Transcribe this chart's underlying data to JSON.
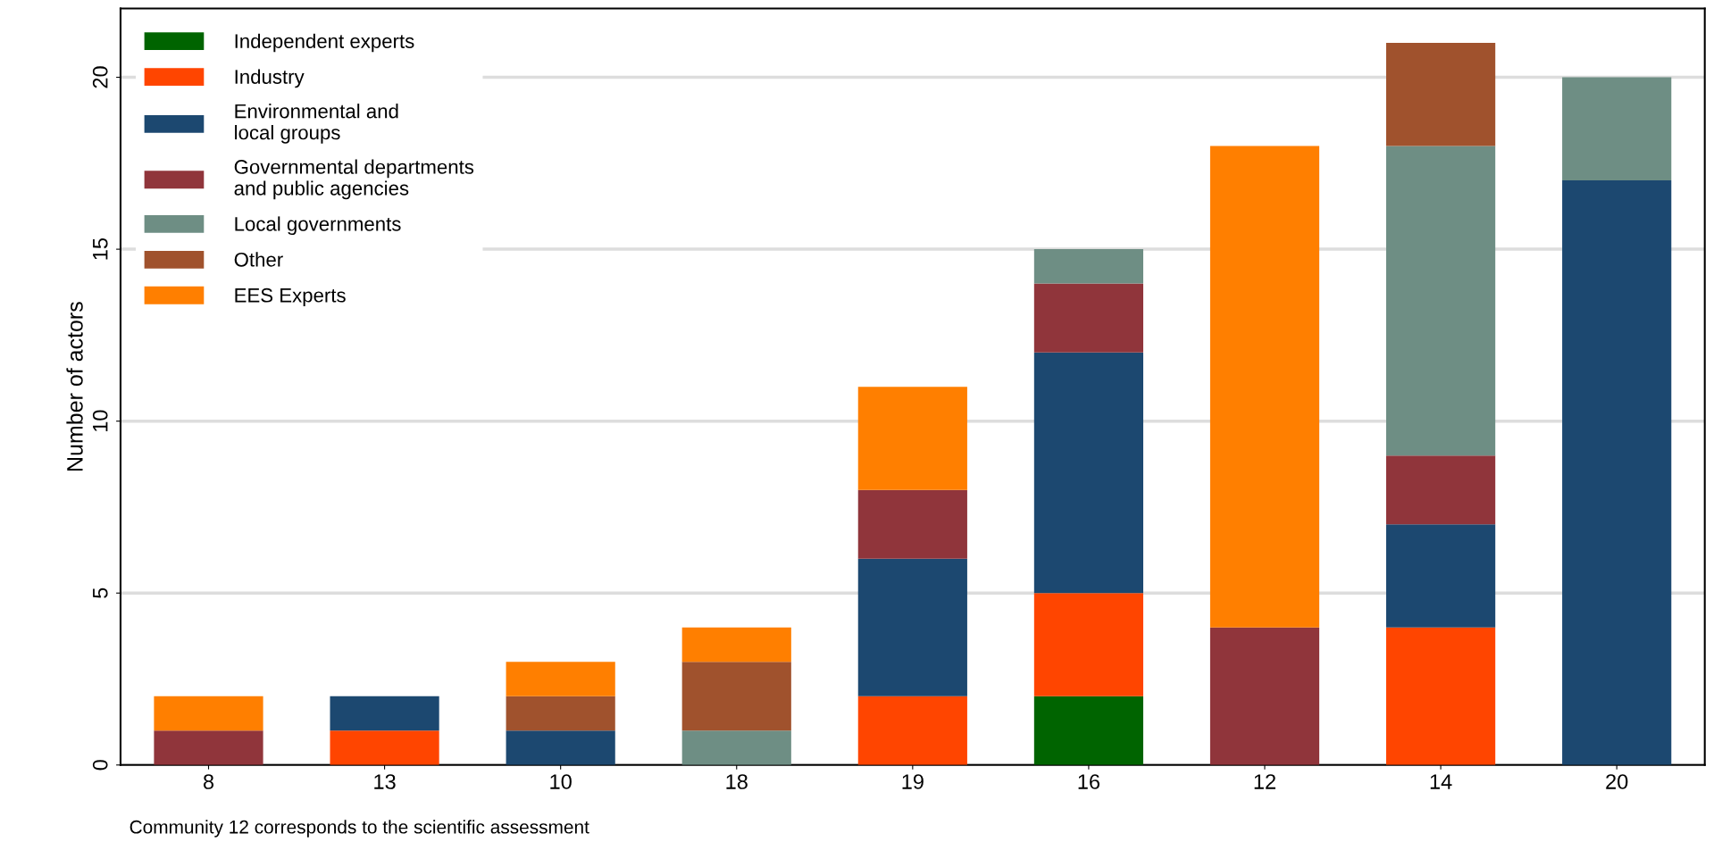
{
  "chart_data": {
    "type": "bar",
    "stacked": true,
    "ylabel": "Number of actors",
    "categories": [
      "8",
      "13",
      "10",
      "18",
      "19",
      "16",
      "12",
      "14",
      "20"
    ],
    "series": [
      {
        "name": "Independent experts",
        "color": "#006400",
        "values": [
          0,
          0,
          0,
          0,
          0,
          2,
          0,
          0,
          0
        ]
      },
      {
        "name": "Industry",
        "color": "#ff4500",
        "values": [
          0,
          1,
          0,
          0,
          2,
          3,
          0,
          4,
          0
        ]
      },
      {
        "name": "Environmental and\nlocal groups",
        "color": "#1c4870",
        "values": [
          0,
          1,
          1,
          0,
          4,
          7,
          0,
          3,
          17
        ]
      },
      {
        "name": "Governmental departments\nand public agencies",
        "color": "#90353b",
        "values": [
          1,
          0,
          0,
          0,
          2,
          2,
          4,
          2,
          0
        ]
      },
      {
        "name": "Local governments",
        "color": "#6e8e84",
        "values": [
          0,
          0,
          0,
          1,
          0,
          1,
          0,
          9,
          3
        ]
      },
      {
        "name": "Other",
        "color": "#a0522d",
        "values": [
          0,
          0,
          1,
          2,
          0,
          0,
          0,
          3,
          0
        ]
      },
      {
        "name": "EES Experts",
        "color": "#ff7f00",
        "values": [
          1,
          0,
          1,
          1,
          3,
          0,
          14,
          0,
          0
        ]
      }
    ],
    "ylim": [
      0,
      22
    ],
    "yticks": [
      0,
      5,
      10,
      15,
      20
    ],
    "grid": "y",
    "legend": "top left",
    "annotations": [
      "Community 12 corresponds to the scientific assessment"
    ]
  }
}
